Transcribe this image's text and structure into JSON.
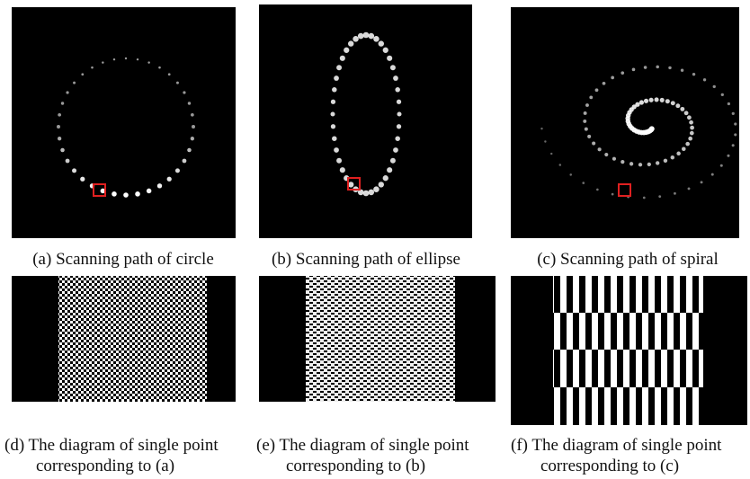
{
  "panels": [
    {
      "caption": [
        "(a) Scanning path of circle"
      ]
    },
    {
      "caption": [
        "(b) Scanning path of ellipse"
      ]
    },
    {
      "caption": [
        "(c) Scanning path of spiral"
      ]
    },
    {
      "caption": [
        "(d) The diagram of single point",
        "corresponding to (a)"
      ]
    },
    {
      "caption": [
        "(e) The diagram of single point",
        "corresponding to (b)"
      ]
    },
    {
      "caption": [
        "(f) The diagram of single point",
        "corresponding to (c)"
      ]
    }
  ]
}
